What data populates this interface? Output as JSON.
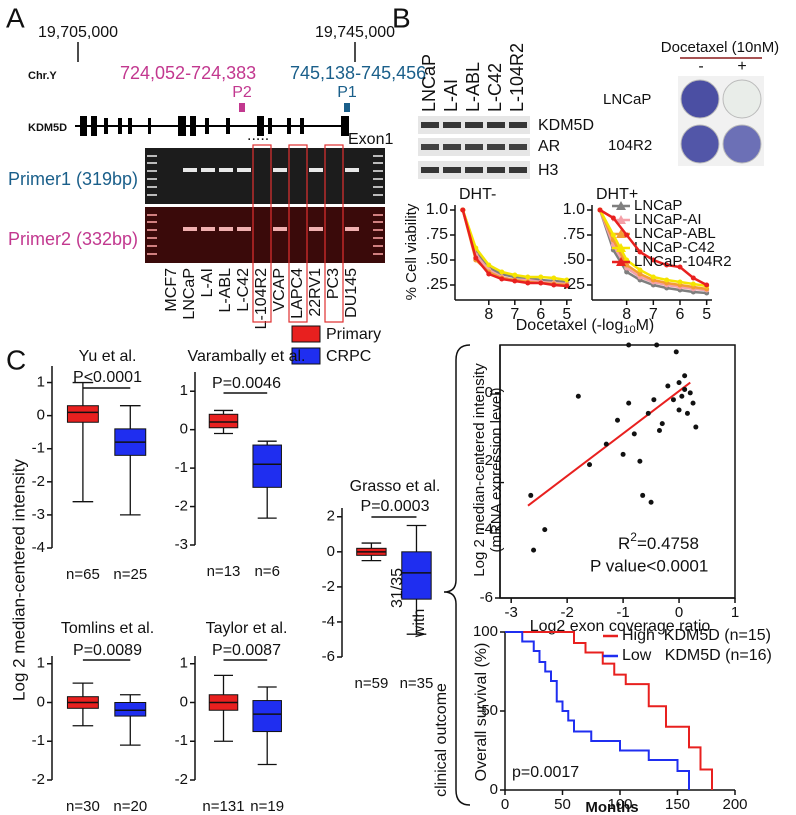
{
  "panel_labels": [
    "A",
    "B",
    "C"
  ],
  "panel_a": {
    "coord_left": "19,705,000",
    "coord_right": "19,745,000",
    "chr": "Chr.Y",
    "range_p2": "724,052-724,383",
    "range_p1": "745,138-745,456",
    "p2": "P2",
    "p1": "P1",
    "gene": "KDM5D",
    "dots": ".....",
    "exon": "Exon1",
    "primer1": "Primer1 (319bp)",
    "primer2": "Primer2 (332bp)",
    "lanes": [
      "MCF7",
      "LNCaP",
      "L-AI",
      "L-ABL",
      "L-C42",
      "L-104R2",
      "VCAP",
      "LAPC4",
      "22RV1",
      "PC3",
      "DU145"
    ]
  },
  "panel_b": {
    "lanes": [
      "LNCaP",
      "L-AI",
      "L-ABL",
      "L-C42",
      "L-104R2"
    ],
    "bands": [
      "KDM5D",
      "AR",
      "H3"
    ],
    "treatment": "Docetaxel (10nM)",
    "minus": "-",
    "plus": "+",
    "rows": [
      "LNCaP",
      "104R2"
    ]
  },
  "panel_c": {
    "legend": [
      {
        "name": "Primary",
        "color": "#e8201f"
      },
      {
        "name": "CRPC",
        "color": "#1f2ef0"
      }
    ],
    "ylabel": "Log 2 median-centered intensity",
    "clinical": [
      "31/35",
      "with",
      "clinical outcome"
    ]
  },
  "chart_data": [
    {
      "type": "line",
      "title": "DHT-",
      "ylabel": "% Cell viability",
      "xlabel": [
        "Docetaxel (-log",
        "10",
        "M)"
      ],
      "x": [
        9,
        8.5,
        8,
        7.5,
        7,
        6.5,
        6,
        5.5,
        5
      ],
      "xlim": [
        9.3,
        4.8
      ],
      "ylim": [
        0.1,
        1.05
      ],
      "xticks": [
        8,
        7,
        6,
        5
      ],
      "yticks": [
        {
          "value": 1,
          "label": "1.0"
        },
        {
          "value": 0.75,
          "label": ".75"
        },
        {
          "value": 0.5,
          "label": ".50"
        },
        {
          "value": 0.25,
          "label": ".25"
        }
      ],
      "series": [
        {
          "color": "#7f7f7f",
          "values": [
            1,
            0.6,
            0.42,
            0.36,
            0.33,
            0.32,
            0.3,
            0.29,
            0.28
          ]
        },
        {
          "color": "#f4a0a8",
          "values": [
            1,
            0.55,
            0.4,
            0.33,
            0.3,
            0.3,
            0.28,
            0.27,
            0.26
          ]
        },
        {
          "color": "#f39c33",
          "values": [
            1,
            0.5,
            0.38,
            0.32,
            0.3,
            0.28,
            0.27,
            0.26,
            0.25
          ]
        },
        {
          "color": "#f5e400",
          "values": [
            1,
            0.62,
            0.45,
            0.38,
            0.35,
            0.33,
            0.33,
            0.32,
            0.3
          ]
        },
        {
          "color": "#e8201f",
          "values": [
            1,
            0.52,
            0.36,
            0.31,
            0.29,
            0.27,
            0.27,
            0.25,
            0.24
          ]
        }
      ]
    },
    {
      "type": "line",
      "title": "DHT+",
      "x": [
        9,
        8.5,
        8,
        7.5,
        7,
        6.5,
        6,
        5.5,
        5
      ],
      "xlim": [
        9.3,
        4.8
      ],
      "ylim": [
        0.1,
        1.05
      ],
      "xticks": [
        8,
        7,
        6,
        5
      ],
      "yticks": [
        {
          "value": 1,
          "label": "1.0"
        },
        {
          "value": 0.75,
          "label": ".75"
        },
        {
          "value": 0.5,
          "label": ".50"
        },
        {
          "value": 0.25,
          "label": ".25"
        }
      ],
      "series": [
        {
          "name": "LNCaP",
          "color": "#7f7f7f",
          "values": [
            1,
            0.6,
            0.38,
            0.3,
            0.25,
            0.22,
            0.2,
            0.18,
            0.17
          ]
        },
        {
          "name": "LNCaP-AI",
          "color": "#f4a0a8",
          "values": [
            1,
            0.65,
            0.42,
            0.33,
            0.28,
            0.25,
            0.23,
            0.21,
            0.2
          ]
        },
        {
          "name": "LNCaP-ABL",
          "color": "#f39c33",
          "values": [
            1,
            0.7,
            0.45,
            0.36,
            0.3,
            0.27,
            0.25,
            0.23,
            0.21
          ]
        },
        {
          "name": "LNCaP-C42",
          "color": "#f5e400",
          "values": [
            1,
            0.75,
            0.5,
            0.4,
            0.33,
            0.3,
            0.28,
            0.26,
            0.24
          ]
        },
        {
          "name": "LNCaP-104R2",
          "color": "#e8201f",
          "values": [
            1,
            0.92,
            0.75,
            0.58,
            0.5,
            0.45,
            0.43,
            0.32,
            0.25
          ]
        }
      ]
    },
    {
      "type": "box",
      "title": "Yu et al.",
      "p_label": "P<0.0001",
      "categories": [
        "n=65",
        "n=25"
      ],
      "ylim": [
        -4,
        1.5
      ],
      "yticks": [
        1,
        0,
        -1,
        -2,
        -3,
        -4
      ],
      "colors": [
        "#e8201f",
        "#1f2ef0"
      ],
      "boxes": [
        {
          "min": -2.6,
          "q1": -0.2,
          "median": 0.1,
          "q3": 0.3,
          "max": 1
        },
        {
          "min": -3,
          "q1": -1.2,
          "median": -0.8,
          "q3": -0.4,
          "max": 0.3
        }
      ]
    },
    {
      "type": "box",
      "title": "Varambally et al.",
      "p_label": "P=0.0046",
      "categories": [
        "n=13",
        "n=6"
      ],
      "ylim": [
        -3,
        1.5
      ],
      "yticks": [
        1,
        0,
        -1,
        -2,
        -3
      ],
      "colors": [
        "#e8201f",
        "#1f2ef0"
      ],
      "boxes": [
        {
          "min": -0.1,
          "q1": 0.05,
          "median": 0.2,
          "q3": 0.4,
          "max": 0.5
        },
        {
          "min": -2.3,
          "q1": -1.5,
          "median": -0.9,
          "q3": -0.4,
          "max": -0.3
        }
      ]
    },
    {
      "type": "box",
      "title": "Grasso et al.",
      "p_label": "P=0.0003",
      "categories": [
        "n=59",
        "n=35"
      ],
      "ylim": [
        -6,
        2.5
      ],
      "yticks": [
        2,
        0,
        -2,
        -4,
        -6
      ],
      "colors": [
        "#e8201f",
        "#1f2ef0"
      ],
      "boxes": [
        {
          "min": -0.5,
          "q1": -0.2,
          "median": 0,
          "q3": 0.2,
          "max": 0.5
        },
        {
          "min": -4.7,
          "q1": -2.7,
          "median": -1.2,
          "q3": 0,
          "max": 1.5
        }
      ]
    },
    {
      "type": "box",
      "title": "Tomlins et al.",
      "p_label": "P=0.0089",
      "categories": [
        "n=30",
        "n=20"
      ],
      "ylim": [
        -2,
        1.2
      ],
      "yticks": [
        1,
        0,
        -1,
        -2
      ],
      "colors": [
        "#e8201f",
        "#1f2ef0"
      ],
      "boxes": [
        {
          "min": -0.6,
          "q1": -0.15,
          "median": 0,
          "q3": 0.15,
          "max": 0.5
        },
        {
          "min": -1.1,
          "q1": -0.35,
          "median": -0.2,
          "q3": 0,
          "max": 0.2
        }
      ]
    },
    {
      "type": "box",
      "title": "Taylor et al.",
      "p_label": "P=0.0087",
      "categories": [
        "n=131",
        "n=19"
      ],
      "ylim": [
        -2,
        1.2
      ],
      "yticks": [
        1,
        0,
        -1,
        -2
      ],
      "colors": [
        "#e8201f",
        "#1f2ef0"
      ],
      "boxes": [
        {
          "min": -1,
          "q1": -0.2,
          "median": 0,
          "q3": 0.2,
          "max": 0.7
        },
        {
          "min": -1.6,
          "q1": -0.75,
          "median": -0.3,
          "q3": 0.05,
          "max": 0.4
        }
      ]
    },
    {
      "type": "scatter",
      "ylabel": [
        "Log 2 median-centered intensity",
        "(mRNA expression level)"
      ],
      "xlabel": "Log2 exon coverage ratio",
      "xlim": [
        -3.2,
        1
      ],
      "ylim": [
        -6,
        1.4
      ],
      "xticks": [
        -3,
        -2,
        -1,
        0,
        1
      ],
      "yticks": [
        0,
        -2,
        -4,
        -6
      ],
      "color": "#111111",
      "x": [
        -2.65,
        -2.6,
        -2.4,
        -1.8,
        -1.6,
        -1.3,
        -1.1,
        -1.0,
        -0.9,
        -0.8,
        -0.7,
        -0.65,
        -0.55,
        -0.5,
        -0.45,
        -0.4,
        -0.35,
        -0.3,
        -0.2,
        -0.1,
        0,
        0.05,
        0.1,
        0.15,
        0.2,
        0.25,
        0.3,
        -0.05,
        0.1,
        -0.9,
        0
      ],
      "values": [
        -3.0,
        -4.6,
        -4.0,
        -0.1,
        -2.1,
        -1.5,
        -0.8,
        -1.8,
        -0.3,
        -1.2,
        -2.0,
        -3.0,
        -0.6,
        -3.2,
        -0.2,
        1.4,
        -1.1,
        -0.9,
        0.2,
        -0.2,
        0.3,
        -0.1,
        0.5,
        -0.6,
        0,
        -0.3,
        -1.0,
        1.2,
        0.1,
        1.4,
        -0.5
      ],
      "fit": {
        "color": "#e8201f",
        "x": [
          -2.7,
          0.2
        ],
        "values": [
          -3.3,
          0.3
        ]
      },
      "r2": [
        "R",
        "2",
        "=0.4758"
      ],
      "p_label": "P value<0.0001"
    },
    {
      "type": "step",
      "ylabel": "Overall survival (%)",
      "xlabel": "Months",
      "p_label": "p=0.0017",
      "xlim": [
        0,
        200
      ],
      "ylim": [
        0,
        100
      ],
      "xticks": [
        0,
        50,
        100,
        150,
        200
      ],
      "yticks": [
        0,
        50,
        100
      ],
      "series": [
        {
          "name": "High  KDM5D (n=15)",
          "color": "#e8201f",
          "x": [
            0,
            60,
            70,
            85,
            95,
            105,
            125,
            140,
            160,
            170,
            180
          ],
          "values": [
            100,
            93,
            87,
            80,
            73,
            67,
            53,
            40,
            27,
            13,
            0
          ]
        },
        {
          "name": "Low   KDM5D (n=16)",
          "color": "#1f2ef0",
          "x": [
            0,
            15,
            25,
            30,
            35,
            40,
            45,
            50,
            55,
            60,
            75,
            100,
            125,
            150,
            160
          ],
          "values": [
            100,
            94,
            88,
            81,
            75,
            69,
            56,
            50,
            44,
            37,
            31,
            25,
            19,
            12,
            0
          ]
        }
      ]
    }
  ]
}
